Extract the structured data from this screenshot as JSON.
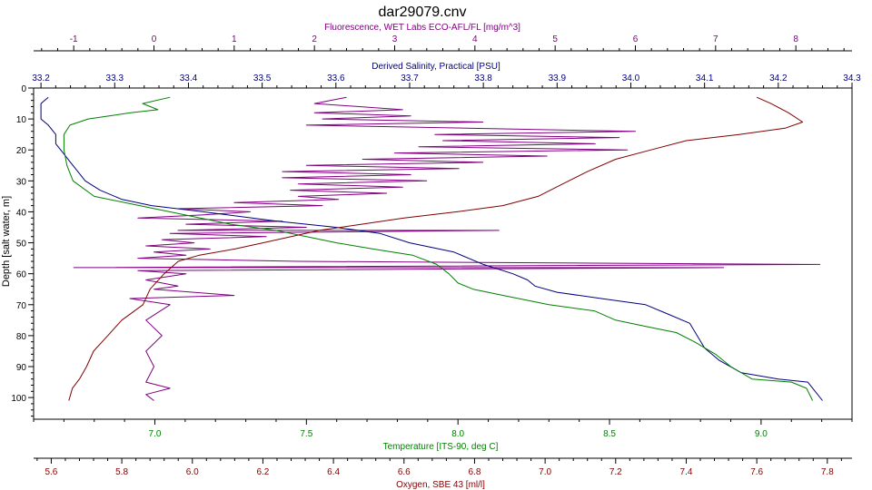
{
  "chart_data": {
    "type": "line",
    "title": "dar29079.cnv",
    "y_axis": {
      "label": "Depth [salt water, m]",
      "range": [
        0,
        107
      ],
      "ticks": [
        0,
        10,
        20,
        30,
        40,
        50,
        60,
        70,
        80,
        90,
        100
      ]
    },
    "axes": {
      "fluorescence": {
        "label": "Fluorescence, WET Labs ECO-AFL/FL [mg/m^3]",
        "range": [
          -1.5,
          8.7
        ],
        "ticks": [
          -1,
          0,
          1,
          2,
          3,
          4,
          5,
          6,
          7,
          8
        ],
        "color": "#800080"
      },
      "salinity": {
        "label": "Derived Salinity, Practical [PSU]",
        "range": [
          33.19,
          34.3
        ],
        "ticks": [
          33.2,
          33.3,
          33.4,
          33.5,
          33.6,
          33.7,
          33.8,
          33.9,
          34.0,
          34.1,
          34.2,
          34.3
        ],
        "tick_labels": [
          "33.2",
          "33.3",
          "33.4",
          "33.5",
          "33.6",
          "33.7",
          "33.8",
          "33.9",
          "34.0",
          "34.1",
          "34.2",
          "34.3"
        ],
        "color": "#000080"
      },
      "temperature": {
        "label": "Temperature [ITS-90, deg C]",
        "range": [
          6.6,
          9.3
        ],
        "ticks": [
          7.0,
          7.5,
          8.0,
          8.5,
          9.0
        ],
        "tick_labels": [
          "7.0",
          "7.5",
          "8.0",
          "8.5",
          "9.0"
        ],
        "color": "#008000"
      },
      "oxygen": {
        "label": "Oxygen, SBE 43 [ml/l]",
        "range": [
          5.55,
          7.87
        ],
        "ticks": [
          5.6,
          5.8,
          6.0,
          6.2,
          6.4,
          6.6,
          6.8,
          7.0,
          7.2,
          7.4,
          7.6,
          7.8
        ],
        "tick_labels": [
          "5.6",
          "5.8",
          "6.0",
          "6.2",
          "6.4",
          "6.6",
          "6.8",
          "7.0",
          "7.2",
          "7.4",
          "7.6",
          "7.8"
        ],
        "color": "#800000"
      }
    },
    "series": [
      {
        "axis": "fluorescence",
        "color": "#800080",
        "points": [
          [
            2.4,
            3
          ],
          [
            2.0,
            5
          ],
          [
            3.1,
            7
          ],
          [
            2.0,
            8
          ],
          [
            3.2,
            9
          ],
          [
            2.1,
            10
          ],
          [
            4.1,
            11
          ],
          [
            1.9,
            12
          ],
          [
            6.0,
            14
          ],
          [
            3.5,
            15
          ],
          [
            5.8,
            16
          ],
          [
            3.6,
            17
          ],
          [
            5.5,
            18
          ],
          [
            3.3,
            19
          ],
          [
            5.9,
            20
          ],
          [
            3.0,
            21
          ],
          [
            4.9,
            22
          ],
          [
            2.6,
            23
          ],
          [
            4.1,
            24
          ],
          [
            1.9,
            25
          ],
          [
            3.8,
            26
          ],
          [
            1.6,
            27
          ],
          [
            3.2,
            28
          ],
          [
            1.6,
            29
          ],
          [
            3.4,
            30
          ],
          [
            1.8,
            31
          ],
          [
            3.1,
            32
          ],
          [
            1.7,
            33
          ],
          [
            2.9,
            34
          ],
          [
            1.8,
            35
          ],
          [
            2.3,
            36
          ],
          [
            1.0,
            37
          ],
          [
            2.1,
            38
          ],
          [
            0.3,
            39
          ],
          [
            1.2,
            40
          ],
          [
            0.6,
            41
          ],
          [
            -0.2,
            42
          ],
          [
            1.6,
            43
          ],
          [
            0.4,
            44
          ],
          [
            1.9,
            45
          ],
          [
            0.3,
            46
          ],
          [
            4.3,
            46
          ],
          [
            0.2,
            47
          ],
          [
            1.4,
            48
          ],
          [
            0.1,
            49
          ],
          [
            0.5,
            50
          ],
          [
            -0.1,
            51
          ],
          [
            0.7,
            52
          ],
          [
            0.0,
            53
          ],
          [
            0.4,
            54
          ],
          [
            -0.2,
            55
          ],
          [
            1.8,
            56
          ],
          [
            8.3,
            57
          ],
          [
            -1.0,
            58
          ],
          [
            7.1,
            58
          ],
          [
            -0.2,
            59
          ],
          [
            0.4,
            60
          ],
          [
            -0.1,
            62
          ],
          [
            0.3,
            64
          ],
          [
            0.0,
            65
          ],
          [
            1.0,
            67
          ],
          [
            -0.3,
            68
          ],
          [
            0.2,
            70
          ],
          [
            -0.1,
            75
          ],
          [
            0.1,
            80
          ],
          [
            -0.1,
            85
          ],
          [
            0.0,
            90
          ],
          [
            -0.1,
            95
          ],
          [
            0.2,
            97
          ],
          [
            -0.1,
            99
          ],
          [
            0.0,
            101
          ]
        ]
      },
      {
        "axis": "salinity",
        "color": "#000080",
        "points": [
          [
            33.21,
            3
          ],
          [
            33.2,
            5
          ],
          [
            33.2,
            8
          ],
          [
            33.2,
            10
          ],
          [
            33.21,
            12
          ],
          [
            33.22,
            15
          ],
          [
            33.22,
            18
          ],
          [
            33.23,
            21
          ],
          [
            33.24,
            24
          ],
          [
            33.25,
            27
          ],
          [
            33.26,
            30
          ],
          [
            33.28,
            33
          ],
          [
            33.31,
            36
          ],
          [
            33.35,
            38
          ],
          [
            33.42,
            40
          ],
          [
            33.52,
            43
          ],
          [
            33.6,
            45
          ],
          [
            33.66,
            47
          ],
          [
            33.7,
            50
          ],
          [
            33.76,
            53
          ],
          [
            33.8,
            57
          ],
          [
            33.84,
            60
          ],
          [
            33.86,
            62
          ],
          [
            33.87,
            64
          ],
          [
            33.9,
            66
          ],
          [
            33.96,
            68
          ],
          [
            34.02,
            70
          ],
          [
            34.05,
            73
          ],
          [
            34.08,
            76
          ],
          [
            34.09,
            80
          ],
          [
            34.1,
            84
          ],
          [
            34.12,
            88
          ],
          [
            34.15,
            92
          ],
          [
            34.2,
            94
          ],
          [
            34.24,
            95
          ],
          [
            34.25,
            98
          ],
          [
            34.26,
            101
          ]
        ]
      },
      {
        "axis": "temperature",
        "color": "#008000",
        "points": [
          [
            7.05,
            3
          ],
          [
            6.96,
            5
          ],
          [
            7.01,
            7
          ],
          [
            6.92,
            8
          ],
          [
            6.78,
            10
          ],
          [
            6.72,
            12
          ],
          [
            6.7,
            15
          ],
          [
            6.7,
            20
          ],
          [
            6.71,
            25
          ],
          [
            6.73,
            30
          ],
          [
            6.8,
            35
          ],
          [
            6.95,
            38
          ],
          [
            7.1,
            41
          ],
          [
            7.25,
            44
          ],
          [
            7.4,
            46
          ],
          [
            7.5,
            48
          ],
          [
            7.6,
            50
          ],
          [
            7.72,
            52
          ],
          [
            7.85,
            54
          ],
          [
            7.93,
            57
          ],
          [
            7.97,
            60
          ],
          [
            8.0,
            63
          ],
          [
            8.05,
            65
          ],
          [
            8.15,
            67
          ],
          [
            8.3,
            70
          ],
          [
            8.45,
            72
          ],
          [
            8.52,
            75
          ],
          [
            8.62,
            77
          ],
          [
            8.72,
            79
          ],
          [
            8.78,
            82
          ],
          [
            8.85,
            86
          ],
          [
            8.9,
            90
          ],
          [
            8.97,
            94
          ],
          [
            9.1,
            95
          ],
          [
            9.15,
            97
          ],
          [
            9.17,
            101
          ]
        ]
      },
      {
        "axis": "oxygen",
        "color": "#800000",
        "points": [
          [
            7.6,
            3
          ],
          [
            7.64,
            5
          ],
          [
            7.69,
            8
          ],
          [
            7.73,
            11
          ],
          [
            7.68,
            13
          ],
          [
            7.55,
            15
          ],
          [
            7.4,
            17
          ],
          [
            7.3,
            20
          ],
          [
            7.2,
            23
          ],
          [
            7.12,
            27
          ],
          [
            7.05,
            31
          ],
          [
            6.98,
            35
          ],
          [
            6.88,
            38
          ],
          [
            6.75,
            40
          ],
          [
            6.6,
            42
          ],
          [
            6.48,
            44
          ],
          [
            6.36,
            46
          ],
          [
            6.28,
            48
          ],
          [
            6.2,
            50
          ],
          [
            6.12,
            52
          ],
          [
            6.02,
            54
          ],
          [
            5.96,
            56
          ],
          [
            5.92,
            60
          ],
          [
            5.88,
            65
          ],
          [
            5.86,
            70
          ],
          [
            5.8,
            75
          ],
          [
            5.76,
            80
          ],
          [
            5.72,
            85
          ],
          [
            5.7,
            90
          ],
          [
            5.68,
            94
          ],
          [
            5.66,
            97
          ],
          [
            5.65,
            101
          ]
        ]
      }
    ]
  }
}
